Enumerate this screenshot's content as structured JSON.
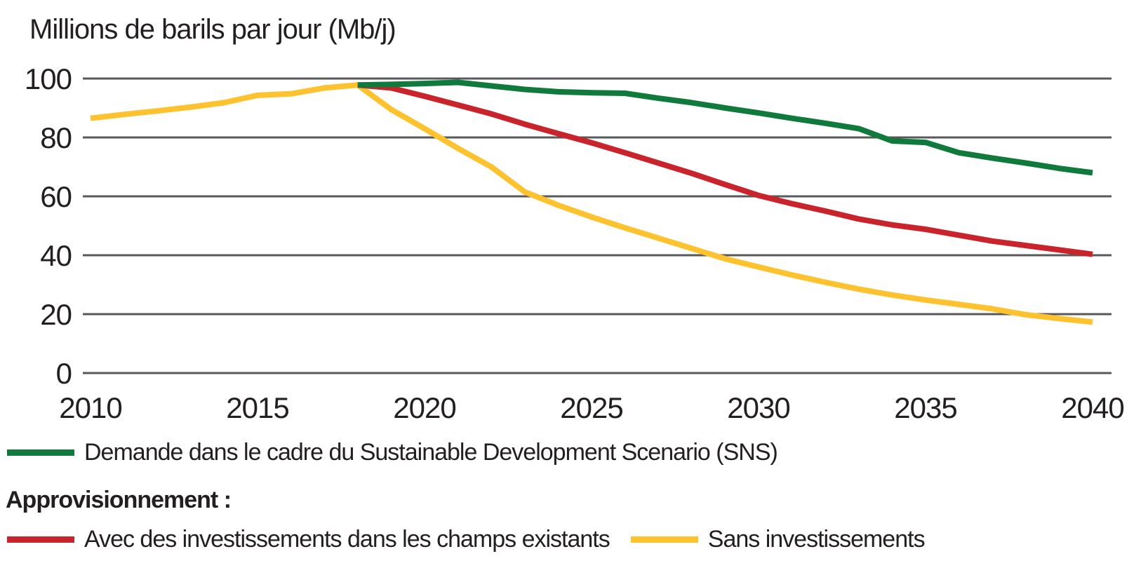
{
  "title": "Millions de barils par jour (Mb/j)",
  "legend": {
    "demand_label": "Demande dans le cadre du Sustainable Development Scenario (SNS)",
    "supply_heading": "Approvisionnement :",
    "with_investment_label": "Avec des investissements dans les champs existants",
    "without_investment_label": "Sans investissements"
  },
  "colors": {
    "text": "#231f20",
    "grid": "#58595b",
    "demand": "#107a3c",
    "with_investment": "#c9242c",
    "without_investment": "#fdc22e"
  },
  "chart_data": {
    "type": "line",
    "title": "Millions de barils par jour (Mb/j)",
    "xlabel": "",
    "ylabel": "Millions de barils par jour (Mb/j)",
    "xlim": [
      2010,
      2040
    ],
    "ylim": [
      0,
      100
    ],
    "x_ticks": [
      2010,
      2015,
      2020,
      2025,
      2030,
      2035,
      2040
    ],
    "y_ticks": [
      0,
      20,
      40,
      60,
      80,
      100
    ],
    "grid": "horizontal-only",
    "legend_position": "below",
    "series": [
      {
        "name": "Demande dans le cadre du Sustainable Development Scenario (SNS)",
        "color_key": "demand",
        "color": "#107a3c",
        "points": [
          [
            2018,
            97.8
          ],
          [
            2019,
            98.0
          ],
          [
            2020,
            98.3
          ],
          [
            2021,
            98.7
          ],
          [
            2022,
            97.5
          ],
          [
            2023,
            96.3
          ],
          [
            2024,
            95.5
          ],
          [
            2025,
            95.2
          ],
          [
            2026,
            95.0
          ],
          [
            2027,
            93.3
          ],
          [
            2028,
            91.8
          ],
          [
            2029,
            90.0
          ],
          [
            2030,
            88.3
          ],
          [
            2031,
            86.5
          ],
          [
            2032,
            84.8
          ],
          [
            2033,
            83.0
          ],
          [
            2034,
            78.8
          ],
          [
            2035,
            78.3
          ],
          [
            2036,
            74.8
          ],
          [
            2037,
            73.0
          ],
          [
            2038,
            71.3
          ],
          [
            2039,
            69.5
          ],
          [
            2040,
            68.0
          ]
        ]
      },
      {
        "name": "Avec des investissements dans les champs existants",
        "color_key": "with_investment",
        "color": "#c9242c",
        "points": [
          [
            2018,
            97.8
          ],
          [
            2019,
            96.8
          ],
          [
            2020,
            94.0
          ],
          [
            2021,
            91.0
          ],
          [
            2022,
            88.0
          ],
          [
            2023,
            84.5
          ],
          [
            2024,
            81.3
          ],
          [
            2025,
            78.2
          ],
          [
            2026,
            74.8
          ],
          [
            2027,
            71.3
          ],
          [
            2028,
            67.8
          ],
          [
            2029,
            64.0
          ],
          [
            2030,
            60.3
          ],
          [
            2031,
            57.5
          ],
          [
            2032,
            55.0
          ],
          [
            2033,
            52.3
          ],
          [
            2034,
            50.3
          ],
          [
            2035,
            48.8
          ],
          [
            2036,
            46.8
          ],
          [
            2037,
            44.8
          ],
          [
            2038,
            43.3
          ],
          [
            2039,
            41.8
          ],
          [
            2040,
            40.3
          ]
        ]
      },
      {
        "name": "Sans investissements",
        "color_key": "without_investment",
        "color": "#fdc22e",
        "points": [
          [
            2010,
            86.5
          ],
          [
            2011,
            87.8
          ],
          [
            2012,
            89.0
          ],
          [
            2013,
            90.3
          ],
          [
            2014,
            91.8
          ],
          [
            2015,
            94.3
          ],
          [
            2016,
            94.8
          ],
          [
            2017,
            96.8
          ],
          [
            2018,
            97.8
          ],
          [
            2019,
            89.5
          ],
          [
            2020,
            83.0
          ],
          [
            2021,
            76.3
          ],
          [
            2022,
            70.0
          ],
          [
            2023,
            61.5
          ],
          [
            2024,
            57.0
          ],
          [
            2025,
            53.0
          ],
          [
            2026,
            49.3
          ],
          [
            2027,
            45.8
          ],
          [
            2028,
            42.3
          ],
          [
            2029,
            38.8
          ],
          [
            2030,
            36.0
          ],
          [
            2031,
            33.3
          ],
          [
            2032,
            30.8
          ],
          [
            2033,
            28.5
          ],
          [
            2034,
            26.5
          ],
          [
            2035,
            24.8
          ],
          [
            2036,
            23.3
          ],
          [
            2037,
            21.8
          ],
          [
            2038,
            19.8
          ],
          [
            2039,
            18.5
          ],
          [
            2040,
            17.3
          ]
        ]
      }
    ]
  }
}
